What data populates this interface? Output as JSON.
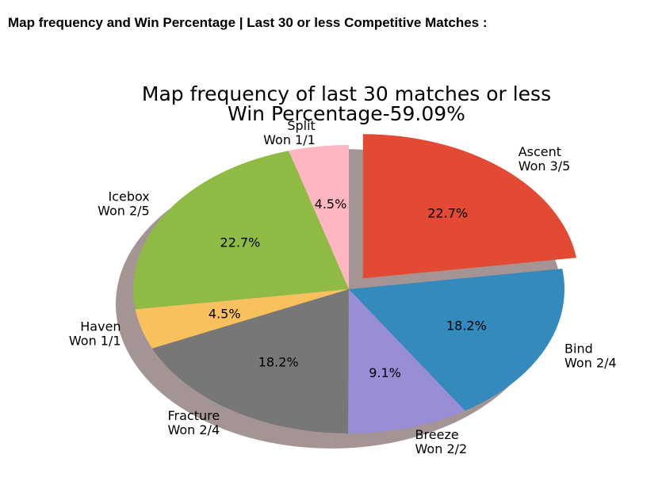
{
  "page": {
    "heading": "Map frequency and Win Percentage | Last 30 or less Competitive Matches :"
  },
  "chart_data": {
    "type": "pie",
    "title": "Map frequency of last 30 matches or less",
    "subtitle": "Win Percentage-59.09%",
    "slices": [
      {
        "map": "Split",
        "result": "Won 1/1",
        "percent": 4.5,
        "percent_label": "4.5%",
        "color": "#ffb6c1"
      },
      {
        "map": "Icebox",
        "result": "Won 2/5",
        "percent": 22.7,
        "percent_label": "22.7%",
        "color": "#8fbb44"
      },
      {
        "map": "Haven",
        "result": "Won 1/1",
        "percent": 4.5,
        "percent_label": "4.5%",
        "color": "#f9c05e"
      },
      {
        "map": "Fracture",
        "result": "Won 2/4",
        "percent": 18.2,
        "percent_label": "18.2%",
        "color": "#777777"
      },
      {
        "map": "Breeze",
        "result": "Won 2/2",
        "percent": 9.1,
        "percent_label": "9.1%",
        "color": "#988ed6"
      },
      {
        "map": "Bind",
        "result": "Won 2/4",
        "percent": 18.2,
        "percent_label": "18.2%",
        "color": "#348abd"
      },
      {
        "map": "Ascent",
        "result": "Won 3/5",
        "percent": 22.7,
        "percent_label": "22.7%",
        "color": "#e24a33",
        "exploded": true
      }
    ],
    "shadow": true
  }
}
